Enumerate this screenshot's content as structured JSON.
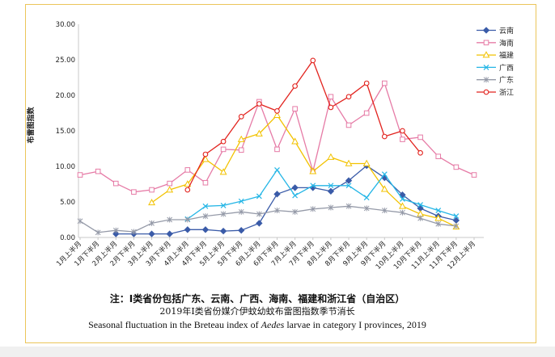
{
  "chart_data": {
    "type": "line",
    "title": "",
    "xlabel": "",
    "ylabel": "布雷图指数",
    "ylim": [
      0,
      30
    ],
    "yticks": [
      "0.00",
      "5.00",
      "10.00",
      "15.00",
      "20.00",
      "25.00",
      "30.00"
    ],
    "legend_position": "top-right",
    "grid": false,
    "categories": [
      "1月上半月",
      "1月下半月",
      "2月上半月",
      "2月下半月",
      "3月上半月",
      "3月下半月",
      "4月上半月",
      "4月下半月",
      "5月上半月",
      "5月下半月",
      "6月上半月",
      "6月下半月",
      "7月上半月",
      "7月下半月",
      "8月上半月",
      "8月下半月",
      "9月上半月",
      "9月下半月",
      "10月上半月",
      "10月下半月",
      "11月上半月",
      "11月下半月",
      "12月上半月"
    ],
    "series": [
      {
        "name": "云南",
        "color": "#3a5ba8",
        "marker": "diamond",
        "values": [
          null,
          null,
          0.5,
          0.5,
          0.5,
          0.5,
          1.1,
          1.1,
          0.9,
          1.0,
          2.0,
          6.1,
          7.0,
          7.0,
          6.5,
          8.0,
          10.1,
          8.4,
          6.0,
          4.1,
          3.0,
          2.4,
          null
        ]
      },
      {
        "name": "海南",
        "color": "#e67ba6",
        "marker": "square",
        "values": [
          8.8,
          9.3,
          7.6,
          6.4,
          6.7,
          7.6,
          9.5,
          7.7,
          12.4,
          12.3,
          19.1,
          12.4,
          18.1,
          9.3,
          19.8,
          15.8,
          17.5,
          21.7,
          13.8,
          14.1,
          11.4,
          9.9,
          8.8
        ]
      },
      {
        "name": "福建",
        "color": "#f2c200",
        "marker": "triangle",
        "values": [
          null,
          null,
          null,
          null,
          4.9,
          6.7,
          7.5,
          11.0,
          9.2,
          13.8,
          14.6,
          17.2,
          13.5,
          9.3,
          11.3,
          10.4,
          10.4,
          6.8,
          4.4,
          3.3,
          2.7,
          1.5,
          null
        ]
      },
      {
        "name": "广西",
        "color": "#25b6e6",
        "marker": "x",
        "values": [
          null,
          null,
          null,
          null,
          null,
          null,
          2.6,
          4.4,
          4.5,
          5.1,
          5.8,
          9.5,
          5.9,
          7.3,
          7.3,
          7.3,
          5.6,
          8.9,
          5.4,
          4.6,
          3.8,
          3.0,
          null
        ]
      },
      {
        "name": "广东",
        "color": "#959aa8",
        "marker": "asterisk",
        "values": [
          2.3,
          0.7,
          1.0,
          0.8,
          2.0,
          2.5,
          2.5,
          3.0,
          3.3,
          3.6,
          3.3,
          3.8,
          3.6,
          4.0,
          4.2,
          4.4,
          4.1,
          3.8,
          3.5,
          2.7,
          1.9,
          1.6,
          null
        ]
      },
      {
        "name": "浙江",
        "color": "#e2231e",
        "marker": "circle",
        "values": [
          null,
          null,
          null,
          null,
          null,
          null,
          6.7,
          11.7,
          13.5,
          17.0,
          18.8,
          17.8,
          21.3,
          24.9,
          18.3,
          19.8,
          21.7,
          14.2,
          15.0,
          11.9,
          null,
          null,
          null
        ]
      }
    ]
  },
  "caption": {
    "note": "注：I类省份包括广东、云南、广西、海南、福建和浙江省（自治区）",
    "title_cn": "2019年I类省份媒介伊蚊幼蚊布雷图指数季节消长",
    "title_en_before": "Seasonal fluctuation in the Breteau index of ",
    "title_en_italic": "Aedes",
    "title_en_after": " larvae in category I provinces, 2019"
  }
}
